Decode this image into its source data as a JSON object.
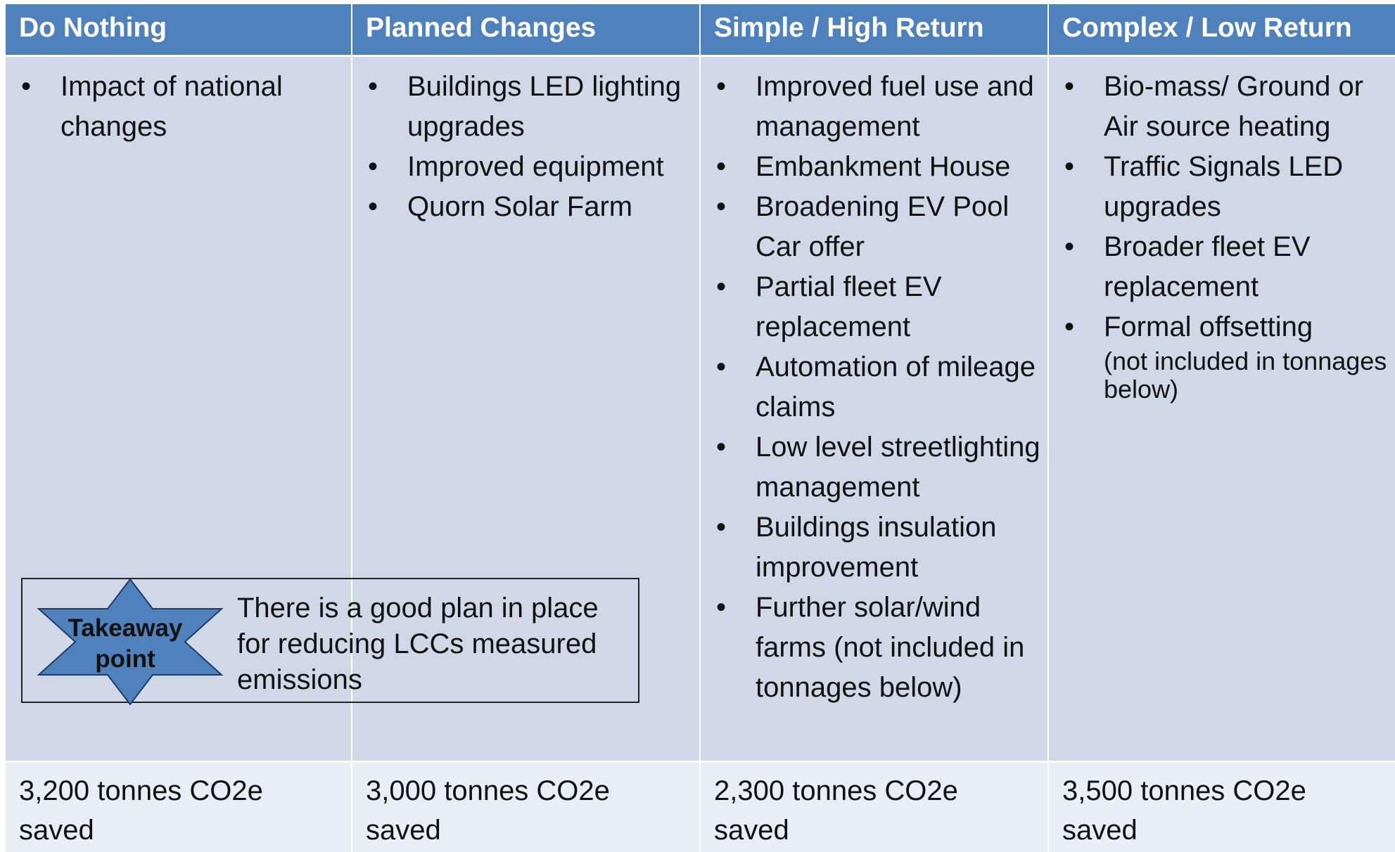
{
  "columns": [
    {
      "header": "Do Nothing",
      "items": [
        "Impact of national changes"
      ],
      "footer": "3,200 tonnes CO2e saved"
    },
    {
      "header": "Planned Changes",
      "items": [
        "Buildings LED lighting upgrades",
        "Improved equipment",
        "Quorn Solar Farm"
      ],
      "footer": "3,000 tonnes CO2e saved"
    },
    {
      "header": "Simple / High Return",
      "items": [
        "Improved fuel use and management",
        "Embankment House",
        "Broadening EV Pool Car offer",
        "Partial fleet EV replacement",
        "Automation of mileage claims",
        "Low level streetlighting management",
        "Buildings insulation improvement",
        "Further solar/wind farms (not included in tonnages below)"
      ],
      "footer": "2,300 tonnes CO2e saved"
    },
    {
      "header": "Complex / Low Return",
      "items": [
        "Bio-mass/ Ground or Air source heating",
        "Traffic Signals LED upgrades",
        "Broader fleet EV replacement",
        "Formal offsetting"
      ],
      "note": "(not included in tonnages below)",
      "footer": "3,500 tonnes CO2e saved"
    }
  ],
  "takeaway": {
    "badge": "Takeaway point",
    "text": "There is a good plan in place for reducing LCCs measured emissions"
  }
}
